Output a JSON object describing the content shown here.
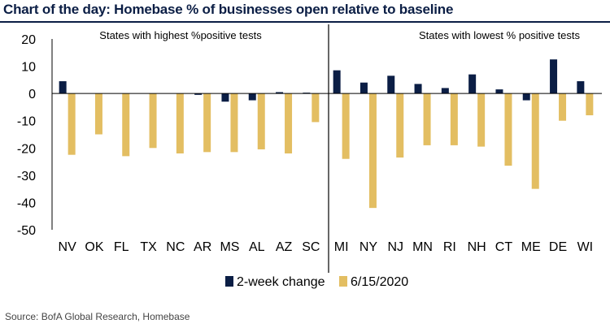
{
  "header": {
    "title": "Chart of the day: Homebase % of businesses open relative to baseline"
  },
  "footer": {
    "source": "Source: BofA Global Research, Homebase"
  },
  "chart_data": {
    "type": "bar",
    "title": "Chart of the day: Homebase % of businesses open relative to baseline",
    "ylim": [
      -50,
      20
    ],
    "yticks": [
      20,
      10,
      0,
      -10,
      -20,
      -30,
      -40,
      -50
    ],
    "grid": false,
    "legend_position": "bottom-center",
    "groups": [
      {
        "label": "States with highest %positive tests",
        "categories": [
          "NV",
          "OK",
          "FL",
          "TX",
          "NC",
          "AR",
          "MS",
          "AL",
          "AZ",
          "SC"
        ]
      },
      {
        "label": "States with lowest % positive tests",
        "categories": [
          "MI",
          "NY",
          "NJ",
          "MN",
          "RI",
          "NH",
          "CT",
          "ME",
          "DE",
          "WI"
        ]
      }
    ],
    "categories": [
      "NV",
      "OK",
      "FL",
      "TX",
      "NC",
      "AR",
      "MS",
      "AL",
      "AZ",
      "SC",
      "MI",
      "NY",
      "NJ",
      "MN",
      "RI",
      "NH",
      "CT",
      "ME",
      "DE",
      "WI"
    ],
    "series": [
      {
        "name": "2-week change",
        "color": "#0b1e45",
        "values": [
          4.5,
          0,
          0,
          0,
          0,
          -0.5,
          -3,
          -2.5,
          0.5,
          0.3,
          8.5,
          4,
          6.5,
          3.5,
          2,
          7,
          1.5,
          -2.5,
          12.5,
          4.5
        ]
      },
      {
        "name": "6/15/2020",
        "color": "#e3be62",
        "values": [
          -22.5,
          -15,
          -23,
          -20,
          -22,
          -21.5,
          -21.5,
          -20.5,
          -22,
          -10.5,
          -24,
          -42,
          -23.5,
          -19,
          -19,
          -19.5,
          -26.5,
          -35,
          -10,
          -8
        ]
      }
    ]
  }
}
